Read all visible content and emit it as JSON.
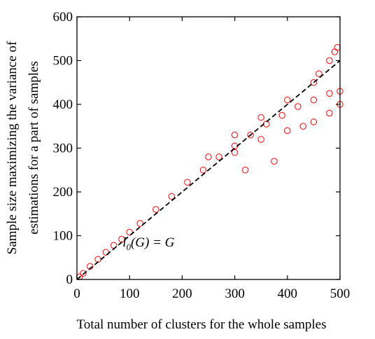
{
  "chart_data": {
    "type": "scatter",
    "xlabel": "Total number of clusters for the whole samples",
    "ylabel_lines": [
      "Sample size maximizing the variance of",
      "estimations for a part of samples"
    ],
    "xlim": [
      0,
      500
    ],
    "ylim": [
      0,
      600
    ],
    "xticks": [
      0,
      100,
      200,
      300,
      400,
      500
    ],
    "yticks": [
      0,
      100,
      200,
      300,
      400,
      500,
      600
    ],
    "xtick_labels": [
      "0",
      "100",
      "200",
      "300",
      "400",
      "500"
    ],
    "ytick_labels": [
      "0",
      "100",
      "200",
      "300",
      "400",
      "500",
      "600"
    ],
    "grid": false,
    "series": [
      {
        "kind": "scatter",
        "marker": "open-circle",
        "color": "#ff0000",
        "points": [
          [
            5,
            6
          ],
          [
            12,
            14
          ],
          [
            25,
            30
          ],
          [
            40,
            46
          ],
          [
            55,
            62
          ],
          [
            70,
            78
          ],
          [
            85,
            92
          ],
          [
            100,
            108
          ],
          [
            120,
            128
          ],
          [
            150,
            160
          ],
          [
            180,
            190
          ],
          [
            210,
            222
          ],
          [
            240,
            250
          ],
          [
            270,
            280
          ],
          [
            300,
            305
          ],
          [
            330,
            330
          ],
          [
            360,
            355
          ],
          [
            390,
            375
          ],
          [
            420,
            395
          ],
          [
            450,
            410
          ],
          [
            480,
            425
          ],
          [
            500,
            430
          ],
          [
            250,
            280
          ],
          [
            300,
            330
          ],
          [
            350,
            370
          ],
          [
            400,
            410
          ],
          [
            450,
            450
          ],
          [
            480,
            500
          ],
          [
            495,
            530
          ],
          [
            300,
            290
          ],
          [
            350,
            320
          ],
          [
            400,
            340
          ],
          [
            450,
            360
          ],
          [
            480,
            380
          ],
          [
            500,
            400
          ],
          [
            320,
            250
          ],
          [
            375,
            270
          ],
          [
            430,
            350
          ],
          [
            460,
            470
          ],
          [
            490,
            520
          ]
        ]
      },
      {
        "kind": "reference-line",
        "style": "dashed",
        "color": "#000000",
        "points": [
          [
            0,
            0
          ],
          [
            500,
            500
          ]
        ]
      }
    ],
    "annotation": {
      "base": "l",
      "subscript": "0",
      "rest": "(G) = G",
      "at": [
        100,
        75
      ]
    }
  }
}
